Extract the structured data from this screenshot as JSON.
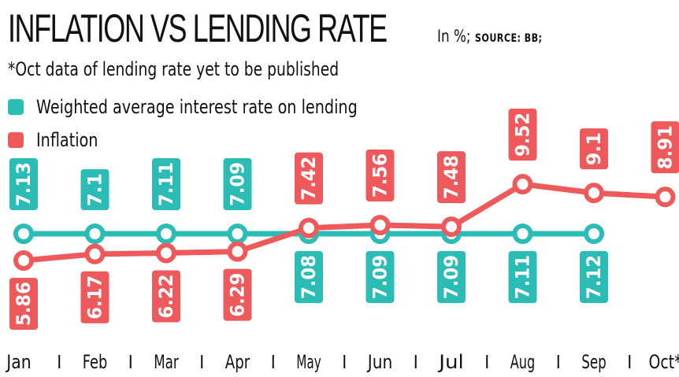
{
  "title": "INFLATION VS LENDING RATE",
  "unit": "In %;",
  "source": "SOURCE: BB;",
  "note": "*Oct data of lending rate yet to be published",
  "colors": {
    "lending": "#2bbcb5",
    "inflation": "#ee5a5c",
    "text": "#111111"
  },
  "chart_data": {
    "type": "line",
    "title": "INFLATION VS LENDING RATE",
    "categories": [
      "Jan",
      "Feb",
      "Mar",
      "Apr",
      "May",
      "Jun",
      "Jul",
      "Aug",
      "Sep",
      "Oct*"
    ],
    "series": [
      {
        "name": "Weighted average interest rate on lending",
        "values": [
          7.13,
          7.1,
          7.11,
          7.09,
          7.08,
          7.09,
          7.09,
          7.11,
          7.12,
          null
        ],
        "labels": [
          "7.13",
          "7.1",
          "7.11",
          "7.09",
          "7.08",
          "7.09",
          "7.09",
          "7.11",
          "7.12",
          ""
        ]
      },
      {
        "name": "Inflation",
        "values": [
          5.86,
          6.17,
          6.22,
          6.29,
          7.42,
          7.56,
          7.48,
          9.52,
          9.1,
          8.91
        ],
        "labels": [
          "5.86",
          "6.17",
          "6.22",
          "6.29",
          "7.42",
          "7.56",
          "7.48",
          "9.52",
          "9.1",
          "8.91"
        ]
      }
    ],
    "label_placement": {
      "lending": [
        "above",
        "above",
        "above",
        "above",
        "below",
        "below",
        "below",
        "below",
        "below",
        ""
      ],
      "inflation": [
        "below",
        "below",
        "below",
        "below",
        "above",
        "above",
        "above",
        "above",
        "above",
        "above"
      ]
    },
    "grid": false,
    "legend": "top-left"
  }
}
